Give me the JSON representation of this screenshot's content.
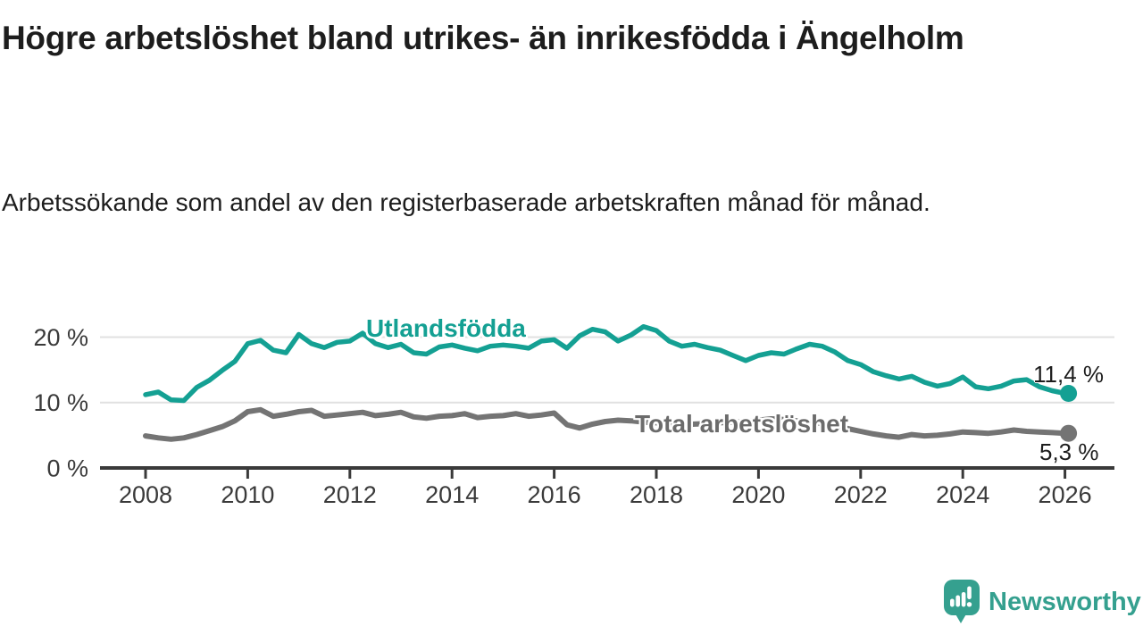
{
  "chart_data": {
    "type": "line",
    "title": "Högre arbetslöshet bland utrikes- än inrikesfödda i Ängelholm",
    "subtitle": "Arbetssökande som andel av den registerbaserade arbetskraften månad för månad.",
    "x_start": 2008,
    "x_step": 0.25,
    "xlim": [
      2007.1,
      2027
    ],
    "ylim": [
      0,
      23
    ],
    "grid": "horizontal",
    "legend_position": "inline-labels-on-lines",
    "x_ticks": [
      2008,
      2010,
      2012,
      2014,
      2016,
      2018,
      2020,
      2022,
      2024,
      2026
    ],
    "y_ticks": [
      {
        "value": 0,
        "label": "0 %"
      },
      {
        "value": 10,
        "label": "10 %"
      },
      {
        "value": 20,
        "label": "20 %"
      }
    ],
    "series": [
      {
        "name": "Utlandsfödda",
        "color": "#14a093",
        "values": [
          11.2,
          11.6,
          10.4,
          10.3,
          12.3,
          13.4,
          14.9,
          16.3,
          19.0,
          19.5,
          18.0,
          17.6,
          20.4,
          19.0,
          18.4,
          19.2,
          19.4,
          20.6,
          19.0,
          18.4,
          18.9,
          17.6,
          17.4,
          18.5,
          18.8,
          18.3,
          17.9,
          18.6,
          18.8,
          18.6,
          18.3,
          19.4,
          19.6,
          18.3,
          20.2,
          21.2,
          20.8,
          19.4,
          20.3,
          21.6,
          21.0,
          19.4,
          18.6,
          18.9,
          18.4,
          18.0,
          17.2,
          16.4,
          17.2,
          17.6,
          17.4,
          18.2,
          18.9,
          18.6,
          17.7,
          16.4,
          15.8,
          14.7,
          14.1,
          13.6,
          14.0,
          13.1,
          12.5,
          12.9,
          13.9,
          12.4,
          12.1,
          12.5,
          13.3,
          13.5,
          12.4,
          11.8,
          11.4
        ]
      },
      {
        "name": "Total arbetslöshet",
        "color": "#747474",
        "values": [
          4.9,
          4.6,
          4.4,
          4.6,
          5.1,
          5.7,
          6.3,
          7.2,
          8.6,
          8.9,
          7.9,
          8.2,
          8.6,
          8.8,
          7.9,
          8.1,
          8.3,
          8.5,
          8.0,
          8.2,
          8.5,
          7.8,
          7.6,
          7.9,
          8.0,
          8.3,
          7.7,
          7.9,
          8.0,
          8.3,
          7.9,
          8.1,
          8.4,
          6.6,
          6.1,
          6.7,
          7.1,
          7.3,
          7.2,
          7.0,
          6.9,
          6.7,
          6.6,
          6.7,
          6.8,
          6.9,
          7.0,
          7.1,
          7.3,
          7.5,
          7.4,
          7.2,
          7.0,
          6.8,
          6.4,
          6.0,
          5.6,
          5.2,
          4.9,
          4.7,
          5.1,
          4.9,
          5.0,
          5.2,
          5.5,
          5.4,
          5.3,
          5.5,
          5.8,
          5.6,
          5.5,
          5.4,
          5.3
        ]
      }
    ],
    "end_labels": [
      {
        "series": "Utlandsfödda",
        "value": 11.4,
        "text": "11,4 %"
      },
      {
        "series": "Total arbetslöshet",
        "value": 5.3,
        "text": "5,3 %"
      }
    ]
  },
  "footer": {
    "brand": "Newsworthy"
  },
  "colors": {
    "accent_teal": "#14a093",
    "line_gray": "#747474",
    "label_gray": "#6b6b6b",
    "grid": "#e1e1e1",
    "axis": "#3a3a3a",
    "text": "#1d1d1d",
    "brand": "#35a08f"
  }
}
